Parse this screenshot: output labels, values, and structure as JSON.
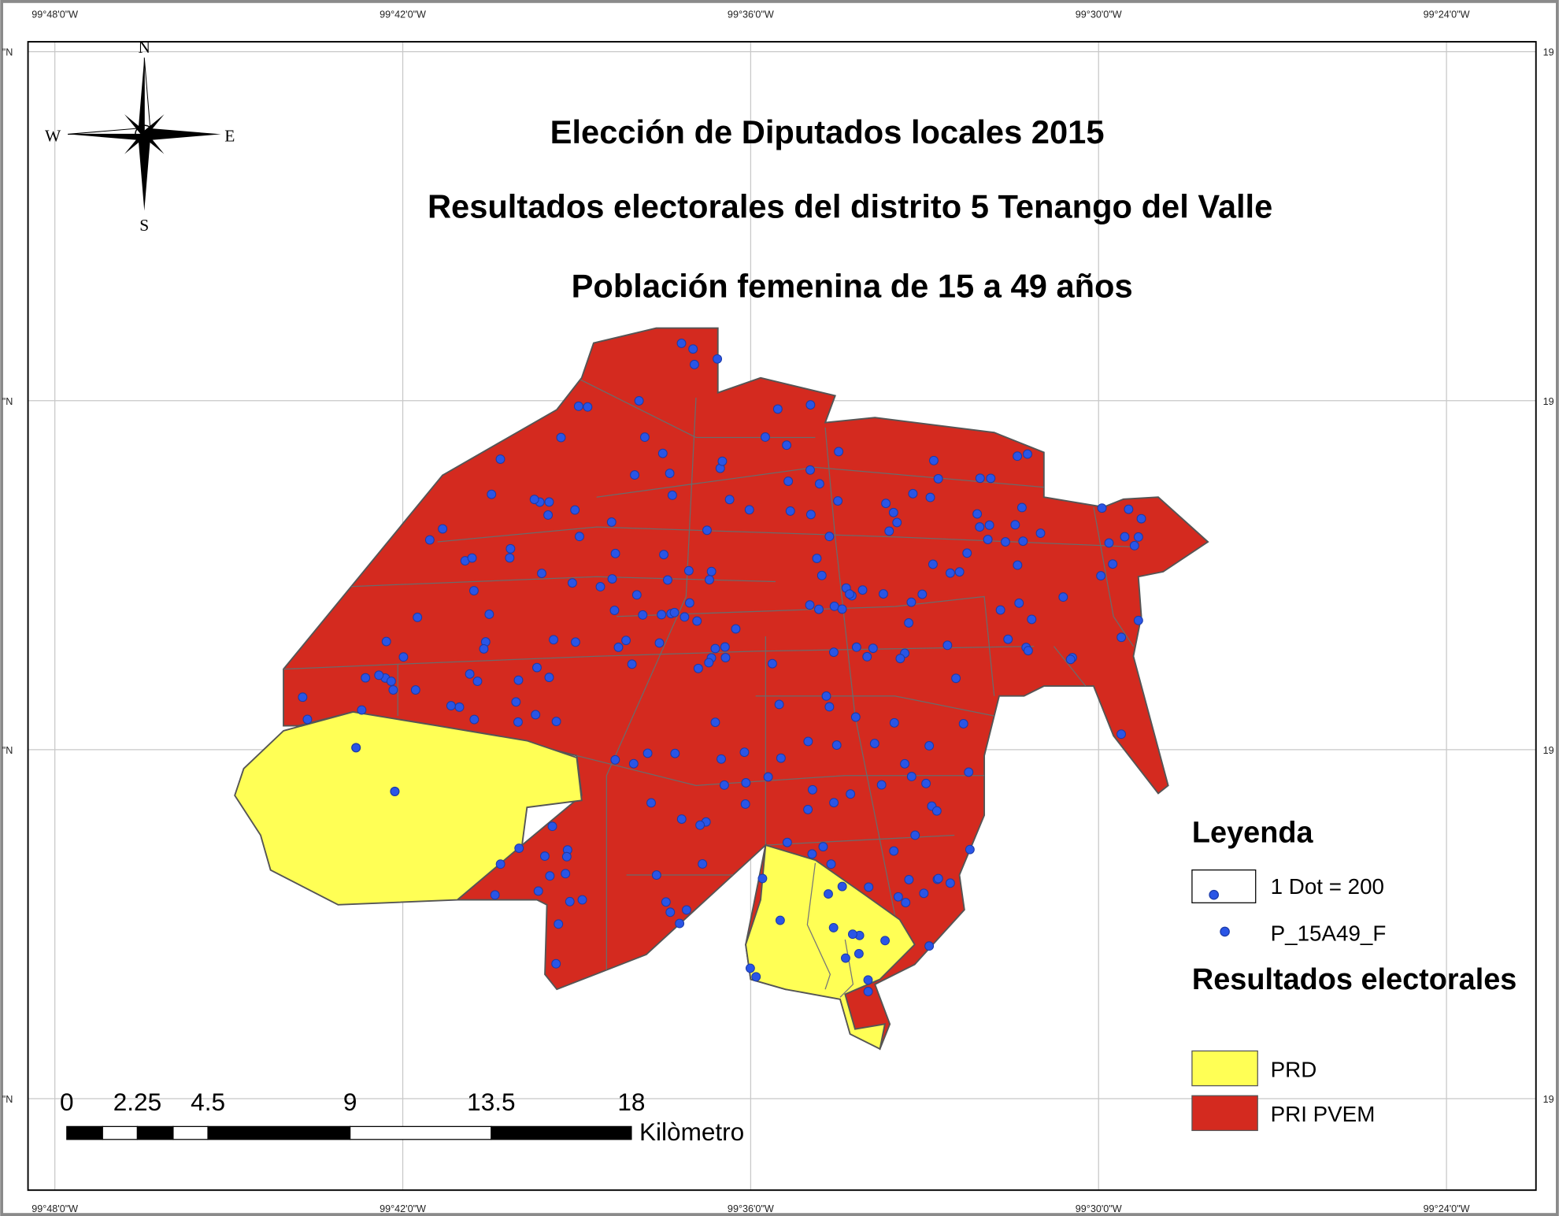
{
  "title": {
    "line1": "Elección de Diputados locales 2015",
    "line2": "Resultados electorales del distrito 5 Tenango del Valle",
    "line3": "Población femenina de 15 a 49 años"
  },
  "graticule": {
    "top": [
      "99°48'0\"W",
      "99°42'0\"W",
      "99°36'0\"W",
      "99°30'0\"W",
      "99°24'0\"W"
    ],
    "bottom": [
      "99°48'0\"W",
      "99°42'0\"W",
      "99°36'0\"W",
      "99°30'0\"W",
      "99°24'0\"W"
    ],
    "left": [
      "\"N",
      "\"N",
      "\"N",
      "\"N"
    ],
    "right": [
      "19",
      "19",
      "19",
      "19"
    ]
  },
  "compass": {
    "n": "N",
    "e": "E",
    "s": "S",
    "w": "W"
  },
  "legend": {
    "heading": "Leyenda",
    "dot_box": "1 Dot = 200",
    "dot_layer": "P_15A49_F",
    "results_heading": "Resultados electorales",
    "items": [
      {
        "label": "PRD",
        "color": "#ffff55"
      },
      {
        "label": "PRI PVEM",
        "color": "#d42a1f"
      }
    ]
  },
  "scale_bar": {
    "labels": [
      "0",
      "2.25",
      "4.5",
      "9",
      "13.5",
      "18"
    ],
    "unit": "Kilòmetro"
  }
}
